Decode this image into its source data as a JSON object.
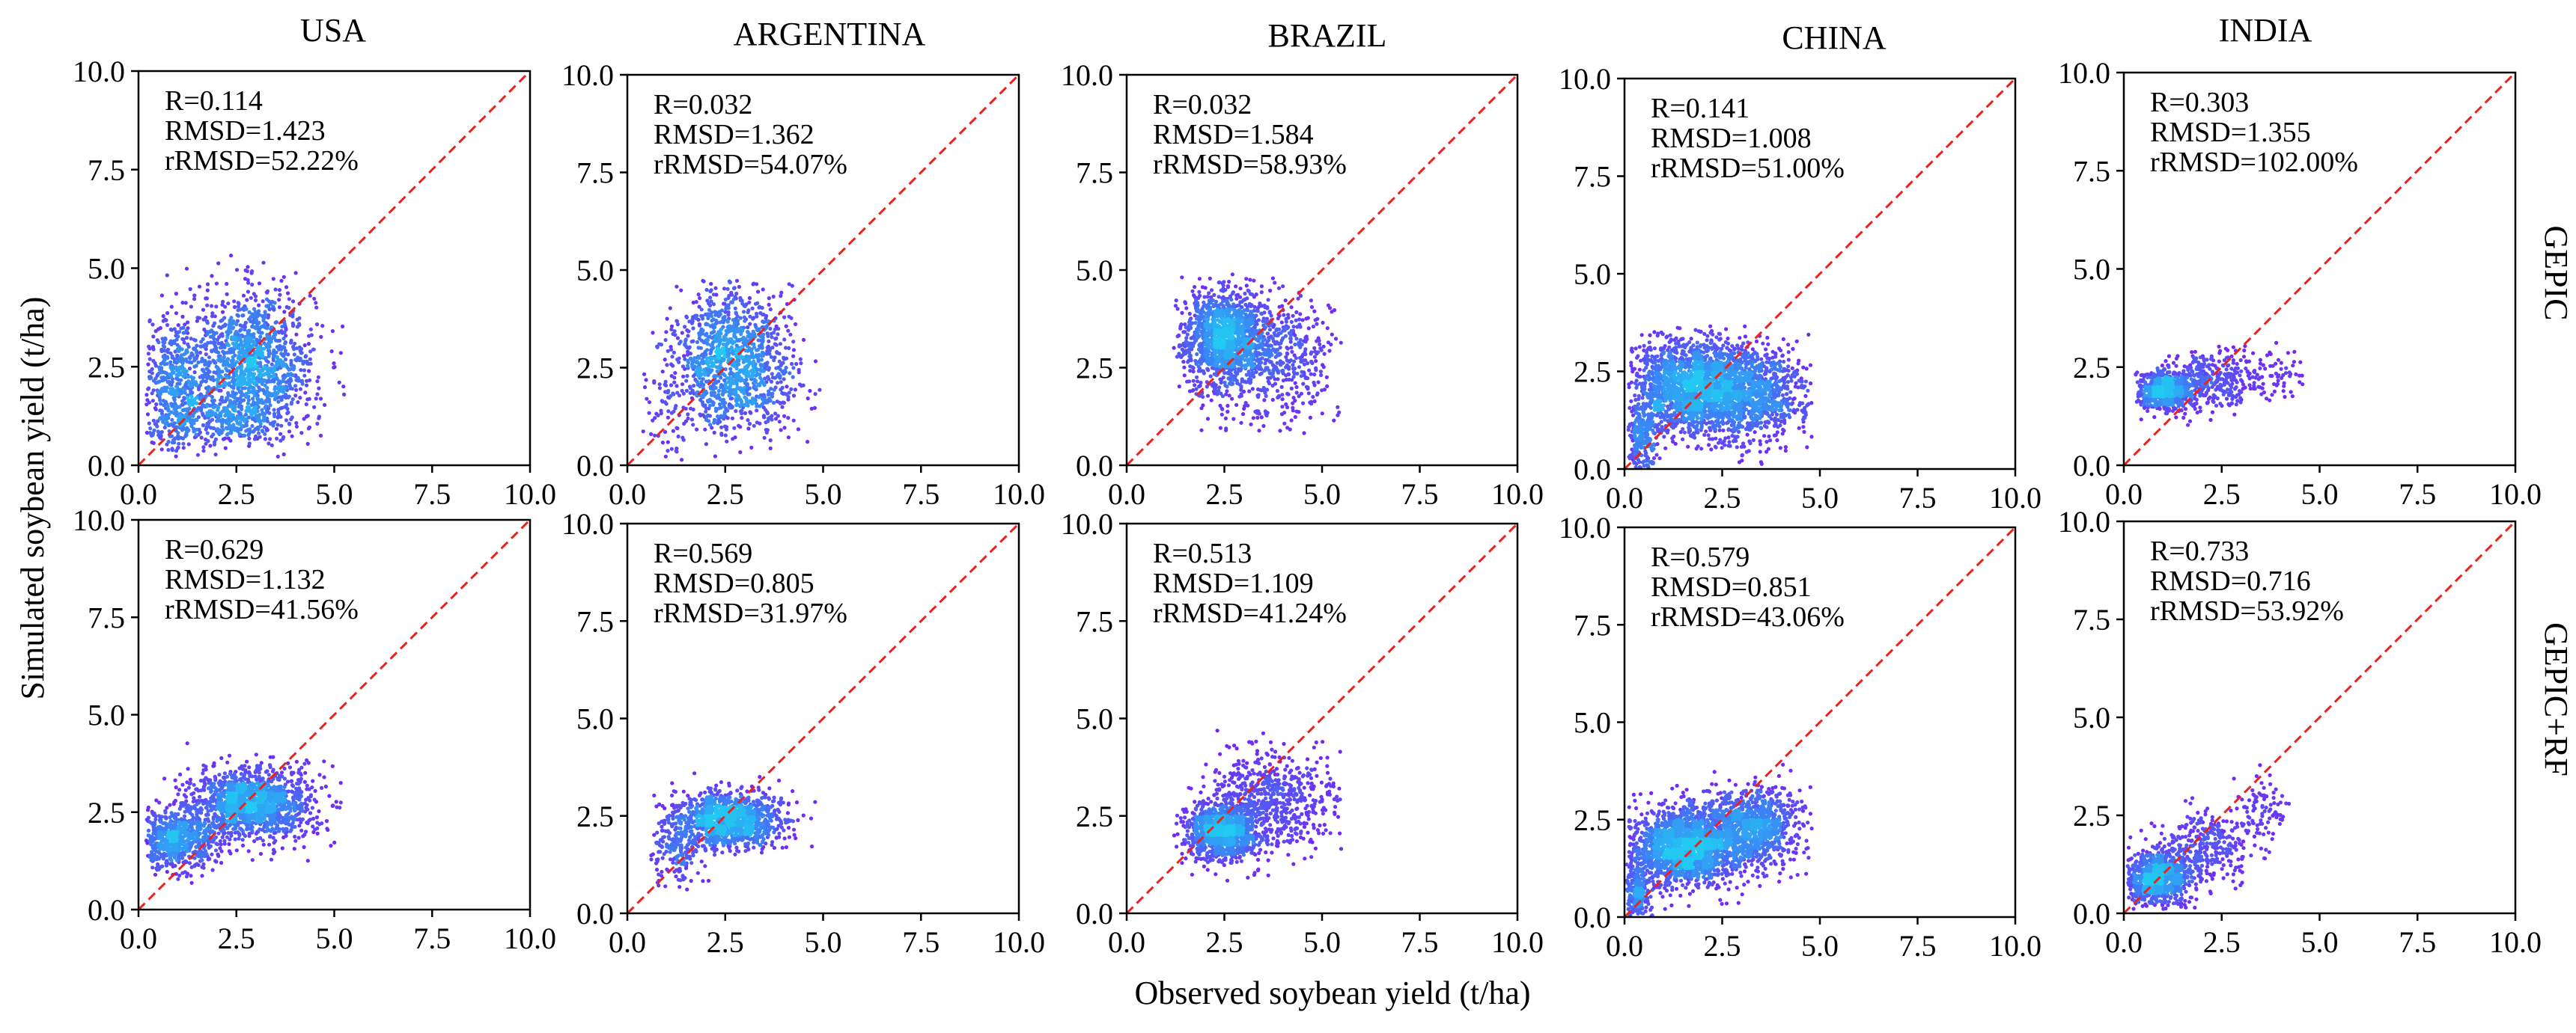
{
  "figure": {
    "xlabel": "Observed soybean yield (t/ha)",
    "ylabel": "Simulated soybean yield (t/ha)",
    "columns": [
      "USA",
      "ARGENTINA",
      "BRAZIL",
      "CHINA",
      "INDIA"
    ],
    "rows": [
      "GEPIC",
      "GEPIC+RF"
    ]
  },
  "colors": {
    "reference_line": "#e8231e",
    "density_low": "#7b1cf5",
    "density_mid": "#3f7af5",
    "density_high": "#22c9f2"
  },
  "chart_data": [
    {
      "type": "scatter",
      "panel": "GEPIC-USA",
      "row": "GEPIC",
      "column": "USA",
      "xlim": [
        0,
        10
      ],
      "ylim": [
        0,
        10
      ],
      "xticks": [
        "0.0",
        "2.5",
        "5.0",
        "7.5",
        "10.0"
      ],
      "yticks": [
        "0.0",
        "2.5",
        "5.0",
        "7.5",
        "10.0"
      ],
      "reference_line": "1:1",
      "stats": [
        "R=0.114",
        "RMSD=1.423",
        "rRMSD=52.22%"
      ],
      "clusters": [
        {
          "cx": 2.9,
          "cy": 2.6,
          "sx": 0.8,
          "sy": 0.9,
          "n": 1300
        },
        {
          "cx": 0.9,
          "cy": 2.0,
          "sx": 0.5,
          "sy": 0.9,
          "n": 500
        },
        {
          "cx": 2.0,
          "cy": 1.1,
          "sx": 1.0,
          "sy": 0.3,
          "n": 300
        }
      ],
      "x_range": [
        0.2,
        5.4
      ],
      "y_range": [
        0.2,
        5.4
      ]
    },
    {
      "type": "scatter",
      "panel": "GEPIC-ARGENTINA",
      "row": "GEPIC",
      "column": "ARGENTINA",
      "xlim": [
        0,
        10
      ],
      "ylim": [
        0,
        10
      ],
      "xticks": [
        "0.0",
        "2.5",
        "5.0",
        "7.5",
        "10.0"
      ],
      "yticks": [
        "0.0",
        "2.5",
        "5.0",
        "7.5",
        "10.0"
      ],
      "reference_line": "1:1",
      "stats": [
        "R=0.032",
        "RMSD=1.362",
        "rRMSD=54.07%"
      ],
      "clusters": [
        {
          "cx": 2.6,
          "cy": 3.0,
          "sx": 0.7,
          "sy": 0.8,
          "n": 900
        },
        {
          "cx": 2.9,
          "cy": 1.9,
          "sx": 0.8,
          "sy": 0.6,
          "n": 400
        },
        {
          "cx": 1.0,
          "cy": 1.2,
          "sx": 0.3,
          "sy": 0.8,
          "n": 60
        }
      ],
      "x_range": [
        0.4,
        5.0
      ],
      "y_range": [
        0.1,
        4.8
      ]
    },
    {
      "type": "scatter",
      "panel": "GEPIC-BRAZIL",
      "row": "GEPIC",
      "column": "BRAZIL",
      "xlim": [
        0,
        10
      ],
      "ylim": [
        0,
        10
      ],
      "xticks": [
        "0.0",
        "2.5",
        "5.0",
        "7.5",
        "10.0"
      ],
      "yticks": [
        "0.0",
        "2.5",
        "5.0",
        "7.5",
        "10.0"
      ],
      "reference_line": "1:1",
      "stats": [
        "R=0.032",
        "RMSD=1.584",
        "rRMSD=58.93%"
      ],
      "clusters": [
        {
          "cx": 2.5,
          "cy": 3.4,
          "sx": 0.5,
          "sy": 0.5,
          "n": 900
        },
        {
          "cx": 3.3,
          "cy": 2.8,
          "sx": 1.0,
          "sy": 0.8,
          "n": 900
        }
      ],
      "x_range": [
        1.2,
        5.5
      ],
      "y_range": [
        0.8,
        5.0
      ]
    },
    {
      "type": "scatter",
      "panel": "GEPIC-CHINA",
      "row": "GEPIC",
      "column": "CHINA",
      "xlim": [
        0,
        10
      ],
      "ylim": [
        0,
        10
      ],
      "xticks": [
        "0.0",
        "2.5",
        "5.0",
        "7.5",
        "10.0"
      ],
      "yticks": [
        "0.0",
        "2.5",
        "5.0",
        "7.5",
        "10.0"
      ],
      "reference_line": "1:1",
      "stats": [
        "R=0.141",
        "RMSD=1.008",
        "rRMSD=51.00%"
      ],
      "clusters": [
        {
          "cx": 1.7,
          "cy": 2.1,
          "sx": 0.8,
          "sy": 0.6,
          "n": 1800
        },
        {
          "cx": 3.3,
          "cy": 1.9,
          "sx": 0.7,
          "sy": 0.6,
          "n": 900
        },
        {
          "cx": 0.4,
          "cy": 0.8,
          "sx": 0.2,
          "sy": 0.5,
          "n": 250
        }
      ],
      "x_range": [
        0.1,
        4.8
      ],
      "y_range": [
        0.0,
        3.7
      ]
    },
    {
      "type": "scatter",
      "panel": "GEPIC-INDIA",
      "row": "GEPIC",
      "column": "INDIA",
      "xlim": [
        0,
        10
      ],
      "ylim": [
        0,
        10
      ],
      "xticks": [
        "0.0",
        "2.5",
        "5.0",
        "7.5",
        "10.0"
      ],
      "yticks": [
        "0.0",
        "2.5",
        "5.0",
        "7.5",
        "10.0"
      ],
      "reference_line": "1:1",
      "stats": [
        "R=0.303",
        "RMSD=1.355",
        "rRMSD=102.00%"
      ],
      "clusters": [
        {
          "cx": 1.0,
          "cy": 1.9,
          "sx": 0.4,
          "sy": 0.25,
          "n": 700
        },
        {
          "cx": 2.3,
          "cy": 2.2,
          "sx": 0.6,
          "sy": 0.4,
          "n": 300
        },
        {
          "cx": 3.8,
          "cy": 2.3,
          "sx": 0.35,
          "sy": 0.35,
          "n": 60
        }
      ],
      "x_range": [
        0.3,
        4.6
      ],
      "y_range": [
        0.4,
        3.4
      ]
    },
    {
      "type": "scatter",
      "panel": "GEPIC+RF-USA",
      "row": "GEPIC+RF",
      "column": "USA",
      "xlim": [
        0,
        10
      ],
      "ylim": [
        0,
        10
      ],
      "xticks": [
        "0.0",
        "2.5",
        "5.0",
        "7.5",
        "10.0"
      ],
      "yticks": [
        "0.0",
        "2.5",
        "5.0",
        "7.5",
        "10.0"
      ],
      "reference_line": "1:1",
      "stats": [
        "R=0.629",
        "RMSD=1.132",
        "rRMSD=41.56%"
      ],
      "clusters": [
        {
          "cx": 2.9,
          "cy": 2.7,
          "sx": 0.8,
          "sy": 0.45,
          "n": 1400
        },
        {
          "cx": 1.0,
          "cy": 1.8,
          "sx": 0.5,
          "sy": 0.4,
          "n": 700
        }
      ],
      "x_range": [
        0.2,
        5.2
      ],
      "y_range": [
        0.6,
        4.5
      ]
    },
    {
      "type": "scatter",
      "panel": "GEPIC+RF-ARGENTINA",
      "row": "GEPIC+RF",
      "column": "ARGENTINA",
      "xlim": [
        0,
        10
      ],
      "ylim": [
        0,
        10
      ],
      "xticks": [
        "0.0",
        "2.5",
        "5.0",
        "7.5",
        "10.0"
      ],
      "yticks": [
        "0.0",
        "2.5",
        "5.0",
        "7.5",
        "10.0"
      ],
      "reference_line": "1:1",
      "stats": [
        "R=0.569",
        "RMSD=0.805",
        "rRMSD=31.97%"
      ],
      "clusters": [
        {
          "cx": 2.6,
          "cy": 2.4,
          "sx": 0.7,
          "sy": 0.35,
          "n": 1100
        },
        {
          "cx": 1.2,
          "cy": 1.7,
          "sx": 0.35,
          "sy": 0.5,
          "n": 200
        }
      ],
      "x_range": [
        0.6,
        4.8
      ],
      "y_range": [
        0.6,
        3.8
      ]
    },
    {
      "type": "scatter",
      "panel": "GEPIC+RF-BRAZIL",
      "row": "GEPIC+RF",
      "column": "BRAZIL",
      "xlim": [
        0,
        10
      ],
      "ylim": [
        0,
        10
      ],
      "xticks": [
        "0.0",
        "2.5",
        "5.0",
        "7.5",
        "10.0"
      ],
      "yticks": [
        "0.0",
        "2.5",
        "5.0",
        "7.5",
        "10.0"
      ],
      "reference_line": "1:1",
      "stats": [
        "R=0.513",
        "RMSD=1.109",
        "rRMSD=41.24%"
      ],
      "clusters": [
        {
          "cx": 2.4,
          "cy": 2.1,
          "sx": 0.45,
          "sy": 0.35,
          "n": 1100
        },
        {
          "cx": 3.6,
          "cy": 2.8,
          "sx": 0.9,
          "sy": 0.7,
          "n": 700
        }
      ],
      "x_range": [
        1.2,
        5.5
      ],
      "y_range": [
        0.8,
        4.9
      ]
    },
    {
      "type": "scatter",
      "panel": "GEPIC+RF-CHINA",
      "row": "GEPIC+RF",
      "column": "CHINA",
      "xlim": [
        0,
        10
      ],
      "ylim": [
        0,
        10
      ],
      "xticks": [
        "0.0",
        "2.5",
        "5.0",
        "7.5",
        "10.0"
      ],
      "yticks": [
        "0.0",
        "2.5",
        "5.0",
        "7.5",
        "10.0"
      ],
      "reference_line": "1:1",
      "stats": [
        "R=0.579",
        "RMSD=0.851",
        "rRMSD=43.06%"
      ],
      "clusters": [
        {
          "cx": 1.6,
          "cy": 1.8,
          "sx": 0.7,
          "sy": 0.5,
          "n": 1800
        },
        {
          "cx": 3.3,
          "cy": 2.3,
          "sx": 0.6,
          "sy": 0.5,
          "n": 900
        },
        {
          "cx": 0.3,
          "cy": 0.6,
          "sx": 0.2,
          "sy": 0.4,
          "n": 250
        }
      ],
      "x_range": [
        0.05,
        4.8
      ],
      "y_range": [
        0.0,
        4.1
      ]
    },
    {
      "type": "scatter",
      "panel": "GEPIC+RF-INDIA",
      "row": "GEPIC+RF",
      "column": "INDIA",
      "xlim": [
        0,
        10
      ],
      "ylim": [
        0,
        10
      ],
      "xticks": [
        "0.0",
        "2.5",
        "5.0",
        "7.5",
        "10.0"
      ],
      "yticks": [
        "0.0",
        "2.5",
        "5.0",
        "7.5",
        "10.0"
      ],
      "reference_line": "1:1",
      "stats": [
        "R=0.733",
        "RMSD=0.716",
        "rRMSD=53.92%"
      ],
      "clusters": [
        {
          "cx": 0.9,
          "cy": 0.9,
          "sx": 0.45,
          "sy": 0.35,
          "n": 900
        },
        {
          "cx": 2.2,
          "cy": 1.7,
          "sx": 0.6,
          "sy": 0.5,
          "n": 300
        },
        {
          "cx": 3.6,
          "cy": 2.6,
          "sx": 0.35,
          "sy": 0.4,
          "n": 80
        }
      ],
      "x_range": [
        0.1,
        4.6
      ],
      "y_range": [
        0.1,
        4.1
      ]
    }
  ]
}
